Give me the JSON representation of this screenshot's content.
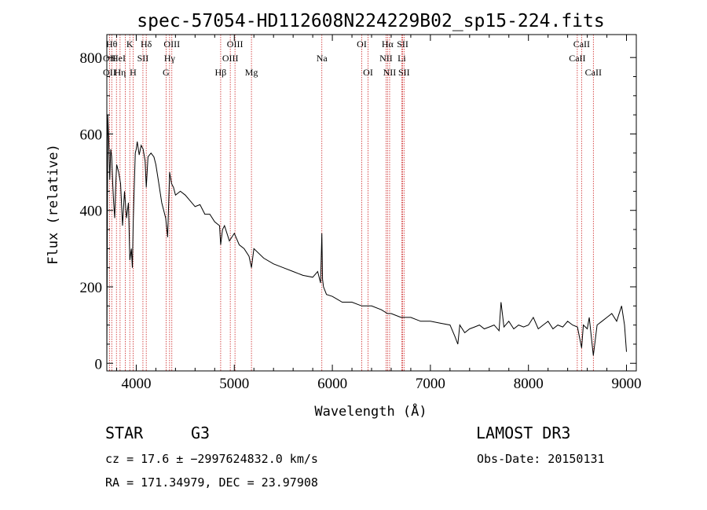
{
  "chart_data": {
    "type": "line",
    "title": "spec-57054-HD112608N224229B02_sp15-224.fits",
    "xlabel": "Wavelength (Å)",
    "ylabel": "Flux (relative)",
    "xlim": [
      3700,
      9100
    ],
    "ylim": [
      -20,
      860
    ],
    "xticks": [
      4000,
      5000,
      6000,
      7000,
      8000,
      9000
    ],
    "yticks": [
      0,
      200,
      400,
      600,
      800
    ],
    "grid": false,
    "series": [
      {
        "x": [
          3700,
          3710,
          3720,
          3730,
          3740,
          3750,
          3760,
          3770,
          3780,
          3790,
          3800,
          3820,
          3840,
          3860,
          3880,
          3900,
          3920,
          3935,
          3950,
          3960,
          3968,
          3975,
          3990,
          4000,
          4010,
          4030,
          4050,
          4070,
          4090,
          4102,
          4120,
          4150,
          4180,
          4200,
          4230,
          4260,
          4300,
          4320,
          4340,
          4360,
          4380,
          4400,
          4450,
          4500,
          4550,
          4600,
          4650,
          4700,
          4750,
          4800,
          4850,
          4861,
          4880,
          4900,
          4950,
          5000,
          5050,
          5100,
          5150,
          5175,
          5200,
          5300,
          5400,
          5500,
          5600,
          5700,
          5800,
          5850,
          5880,
          5893,
          5900,
          5910,
          5940,
          6000,
          6100,
          6200,
          6300,
          6400,
          6500,
          6563,
          6600,
          6700,
          6800,
          6900,
          7000,
          7100,
          7200,
          7250,
          7280,
          7300,
          7350,
          7400,
          7450,
          7500,
          7550,
          7600,
          7650,
          7700,
          7720,
          7750,
          7800,
          7850,
          7900,
          7950,
          8000,
          8050,
          8100,
          8150,
          8200,
          8250,
          8300,
          8350,
          8400,
          8450,
          8500,
          8542,
          8560,
          8600,
          8620,
          8662,
          8700,
          8750,
          8800,
          8850,
          8900,
          8950,
          8980,
          9000
        ],
        "y": [
          0,
          650,
          580,
          480,
          560,
          540,
          470,
          420,
          380,
          460,
          520,
          500,
          470,
          360,
          450,
          380,
          420,
          270,
          300,
          250,
          360,
          420,
          550,
          560,
          580,
          545,
          570,
          560,
          530,
          460,
          540,
          550,
          540,
          520,
          470,
          420,
          380,
          330,
          500,
          470,
          460,
          440,
          450,
          440,
          425,
          410,
          415,
          390,
          390,
          370,
          360,
          310,
          350,
          360,
          320,
          340,
          310,
          300,
          280,
          250,
          300,
          275,
          260,
          250,
          240,
          230,
          225,
          240,
          210,
          340,
          220,
          200,
          180,
          175,
          160,
          160,
          150,
          150,
          140,
          130,
          130,
          120,
          120,
          110,
          110,
          105,
          100,
          70,
          50,
          100,
          80,
          90,
          95,
          100,
          90,
          95,
          100,
          85,
          160,
          95,
          110,
          90,
          100,
          95,
          100,
          120,
          90,
          100,
          110,
          90,
          100,
          95,
          110,
          100,
          95,
          40,
          100,
          90,
          120,
          20,
          100,
          110,
          120,
          130,
          110,
          150,
          100,
          30
        ]
      }
    ],
    "annotations": [
      {
        "label": "OII",
        "x": 3727,
        "row": 2
      },
      {
        "label": "Hθ",
        "x": 3750,
        "row": 0
      },
      {
        "label": "OII",
        "x": 3727,
        "row": 1
      },
      {
        "label": "Hη",
        "x": 3835,
        "row": 2
      },
      {
        "label": "HeI",
        "x": 3820,
        "row": 1
      },
      {
        "label": "K",
        "x": 3934,
        "row": 0
      },
      {
        "label": "SII",
        "x": 4068,
        "row": 1
      },
      {
        "label": "H",
        "x": 3968,
        "row": 2
      },
      {
        "label": "Hδ",
        "x": 4102,
        "row": 0
      },
      {
        "label": "OIII",
        "x": 4363,
        "row": 0
      },
      {
        "label": "Hγ",
        "x": 4340,
        "row": 1
      },
      {
        "label": "G",
        "x": 4304,
        "row": 2
      },
      {
        "label": "Hβ",
        "x": 4861,
        "row": 2
      },
      {
        "label": "OIII",
        "x": 5007,
        "row": 0
      },
      {
        "label": "OIII",
        "x": 4959,
        "row": 1
      },
      {
        "label": "Mg",
        "x": 5175,
        "row": 2
      },
      {
        "label": "Na",
        "x": 5893,
        "row": 1
      },
      {
        "label": "OI",
        "x": 6300,
        "row": 0
      },
      {
        "label": "OI",
        "x": 6364,
        "row": 2
      },
      {
        "label": "Hα",
        "x": 6563,
        "row": 0
      },
      {
        "label": "NII",
        "x": 6548,
        "row": 1
      },
      {
        "label": "NII",
        "x": 6584,
        "row": 2
      },
      {
        "label": "SII",
        "x": 6717,
        "row": 0
      },
      {
        "label": "Li",
        "x": 6708,
        "row": 1
      },
      {
        "label": "SII",
        "x": 6731,
        "row": 2
      },
      {
        "label": "CaII",
        "x": 8542,
        "row": 0
      },
      {
        "label": "CaII",
        "x": 8498,
        "row": 1
      },
      {
        "label": "CaII",
        "x": 8662,
        "row": 2
      }
    ],
    "line_markers": [
      3727,
      3750,
      3798,
      3835,
      3889,
      3934,
      3968,
      4068,
      4102,
      4304,
      4340,
      4363,
      4861,
      4959,
      5007,
      5175,
      5893,
      6300,
      6364,
      6548,
      6563,
      6584,
      6708,
      6717,
      6731,
      8498,
      8542,
      8662
    ]
  },
  "info": {
    "object_class": "STAR",
    "subclass": "G3",
    "survey": "LAMOST DR3",
    "redshift": "cz = 17.6 ± −2997624832.0 km/s",
    "obs_date": "Obs-Date: 20150131",
    "coords": "RA = 171.34979, DEC =  23.97908"
  },
  "colors": {
    "spectrum": "#000000",
    "line_marker": "#cc2222",
    "axes": "#000000",
    "background": "#ffffff"
  }
}
